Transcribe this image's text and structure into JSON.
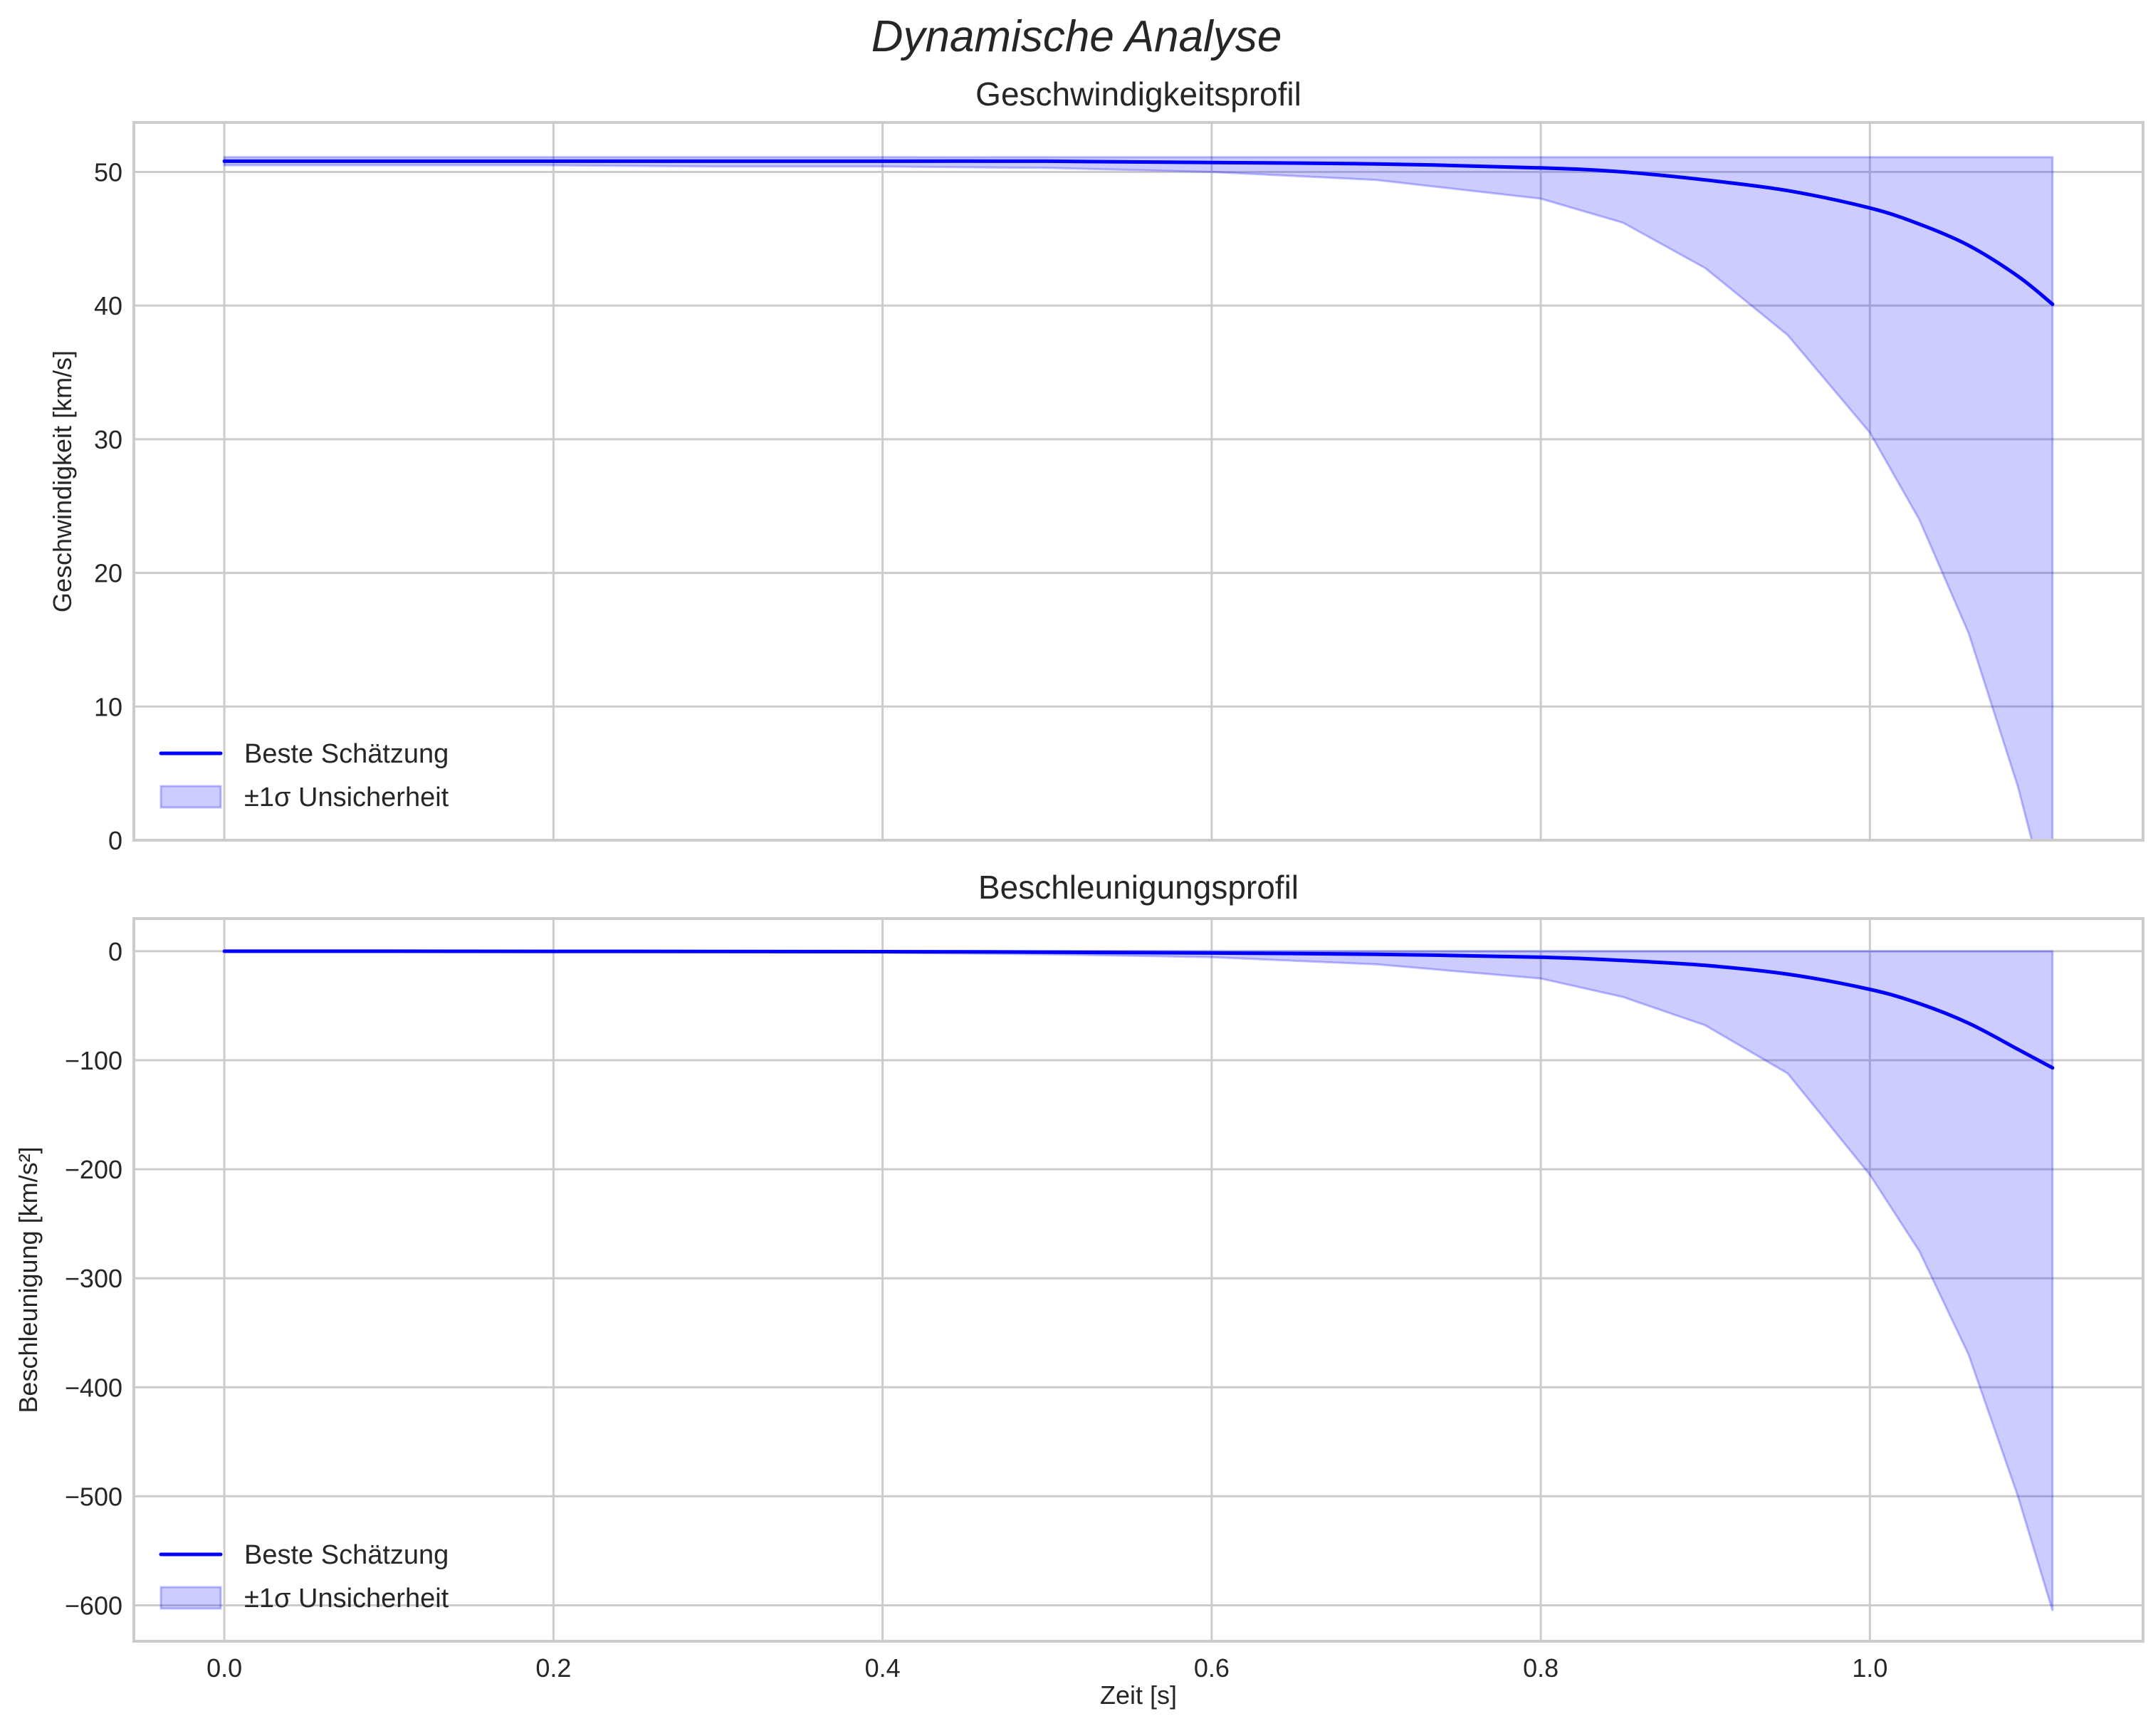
{
  "figure": {
    "suptitle": "Dynamische Analyse",
    "xlabel": "Zeit [s]",
    "line_color": "#0000ff",
    "band_color": "#0000ff",
    "band_opacity": 0.2
  },
  "chart_data": [
    {
      "type": "line",
      "title": "Geschwindigkeitsprofil",
      "xlabel": "",
      "ylabel": "Geschwindigkeit [km/s]",
      "xlim": [
        -0.055,
        1.166
      ],
      "ylim": [
        0,
        53.7
      ],
      "xticks": [
        0.0,
        0.2,
        0.4,
        0.6,
        0.8,
        1.0
      ],
      "xtick_labels": [
        "0.0",
        "0.2",
        "0.4",
        "0.6",
        "0.8",
        "1.0"
      ],
      "yticks": [
        0,
        10,
        20,
        30,
        40,
        50
      ],
      "ytick_labels": [
        "0",
        "10",
        "20",
        "30",
        "40",
        "50"
      ],
      "grid": true,
      "legend_position": "lower left",
      "legend": [
        "Beste Schätzung",
        "±1σ Unsicherheit"
      ],
      "x": [
        0.0,
        0.1,
        0.2,
        0.3,
        0.4,
        0.5,
        0.6,
        0.7,
        0.8,
        0.85,
        0.9,
        0.95,
        1.0,
        1.03,
        1.06,
        1.09,
        1.111
      ],
      "series": [
        {
          "name": "Beste Schätzung",
          "kind": "line",
          "values": [
            50.8,
            50.8,
            50.8,
            50.8,
            50.8,
            50.8,
            50.7,
            50.6,
            50.3,
            50.0,
            49.4,
            48.6,
            47.3,
            46.1,
            44.5,
            42.2,
            40.1
          ]
        },
        {
          "name": "±1σ Unsicherheit (oben)",
          "kind": "band_upper",
          "values": [
            51.1,
            51.1,
            51.1,
            51.1,
            51.1,
            51.1,
            51.1,
            51.1,
            51.1,
            51.1,
            51.1,
            51.1,
            51.1,
            51.1,
            51.1,
            51.1,
            51.1
          ]
        },
        {
          "name": "±1σ Unsicherheit (unten)",
          "kind": "band_lower",
          "values": [
            50.5,
            50.5,
            50.5,
            50.4,
            50.4,
            50.3,
            50.0,
            49.4,
            48.0,
            46.2,
            42.8,
            37.8,
            30.5,
            24.0,
            15.5,
            4.0,
            -6.0
          ]
        }
      ]
    },
    {
      "type": "line",
      "title": "Beschleunigungsprofil",
      "xlabel": "Zeit [s]",
      "ylabel": "Beschleunigung [km/s²]",
      "xlim": [
        -0.055,
        1.166
      ],
      "ylim": [
        -633,
        30
      ],
      "xticks": [
        0.0,
        0.2,
        0.4,
        0.6,
        0.8,
        1.0
      ],
      "xtick_labels": [
        "0.0",
        "0.2",
        "0.4",
        "0.6",
        "0.8",
        "1.0"
      ],
      "yticks": [
        0,
        -100,
        -200,
        -300,
        -400,
        -500,
        -600
      ],
      "ytick_labels": [
        "0",
        "−100",
        "−200",
        "−300",
        "−400",
        "−500",
        "−600"
      ],
      "grid": true,
      "legend_position": "lower left",
      "legend": [
        "Beste Schätzung",
        "±1σ Unsicherheit"
      ],
      "x": [
        0.0,
        0.1,
        0.2,
        0.3,
        0.4,
        0.5,
        0.6,
        0.7,
        0.8,
        0.85,
        0.9,
        0.95,
        1.0,
        1.03,
        1.06,
        1.09,
        1.111
      ],
      "series": [
        {
          "name": "Beste Schätzung",
          "kind": "line",
          "values": [
            0,
            0,
            -0.1,
            -0.2,
            -0.4,
            -0.8,
            -1.6,
            -2.8,
            -5.5,
            -8.5,
            -13,
            -21,
            -35,
            -48,
            -66,
            -90,
            -107
          ]
        },
        {
          "name": "±1σ Unsicherheit (oben)",
          "kind": "band_upper",
          "values": [
            0,
            0,
            0,
            0,
            0,
            0,
            0,
            0,
            0,
            0,
            0,
            0,
            0,
            0,
            0,
            0,
            0
          ]
        },
        {
          "name": "±1σ Unsicherheit (unten)",
          "kind": "band_lower",
          "values": [
            0,
            -0.1,
            -0.2,
            -0.5,
            -1.2,
            -2.8,
            -5.5,
            -12,
            -25,
            -42,
            -68,
            -112,
            -205,
            -275,
            -370,
            -500,
            -605
          ]
        }
      ]
    }
  ]
}
